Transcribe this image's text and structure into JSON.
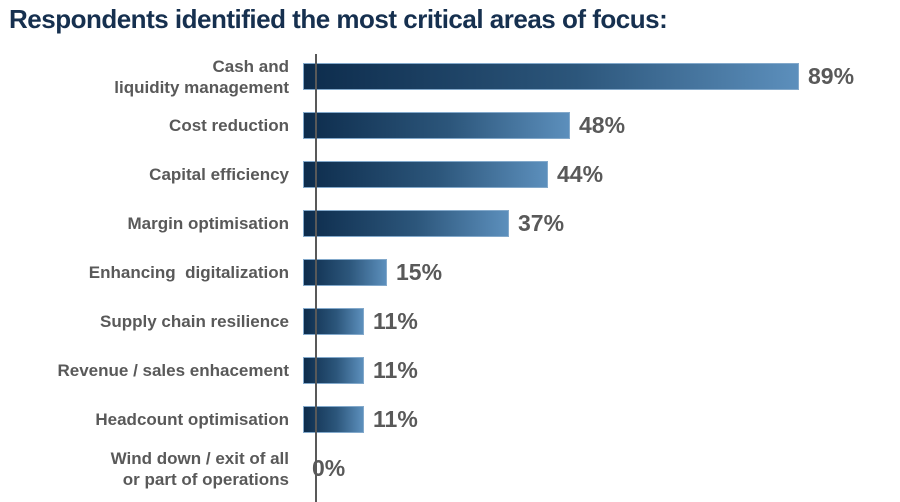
{
  "title": "Respondents identified the most critical areas of focus:",
  "colors": {
    "title": "#16304F",
    "label_gray": "#595959",
    "bar_gradient_start": "#0D2C4C",
    "bar_gradient_end": "#5C8FBC",
    "bar_border": "#83A9CB",
    "axis": "#595959"
  },
  "chart_data": {
    "type": "bar",
    "orientation": "horizontal",
    "title": "Respondents identified the most critical areas of focus:",
    "categories": [
      "Cash and liquidity management",
      "Cost reduction",
      "Capital efficiency",
      "Margin optimisation",
      "Enhancing  digitalization",
      "Supply chain resilience",
      "Revenue / sales enhacement",
      "Headcount optimisation",
      "Wind down / exit of all or part of operations"
    ],
    "values": [
      89,
      48,
      44,
      37,
      15,
      11,
      11,
      11,
      0
    ],
    "value_labels": [
      "89%",
      "48%",
      "44%",
      "37%",
      "15%",
      "11%",
      "11%",
      "11%",
      "0%"
    ],
    "xlim": [
      0,
      100
    ],
    "grid": false,
    "legend": "none",
    "xlabel": "",
    "ylabel": ""
  },
  "rows": [
    {
      "lines": [
        "Cash and",
        "liquidity management"
      ],
      "pct": "89%"
    },
    {
      "lines": [
        "Cost reduction"
      ],
      "pct": "48%"
    },
    {
      "lines": [
        "Capital efficiency"
      ],
      "pct": "44%"
    },
    {
      "lines": [
        "Margin optimisation"
      ],
      "pct": "37%"
    },
    {
      "lines": [
        "Enhancing  digitalization"
      ],
      "pct": "15%"
    },
    {
      "lines": [
        "Supply chain resilience"
      ],
      "pct": "11%"
    },
    {
      "lines": [
        "Revenue / sales enhacement"
      ],
      "pct": "11%"
    },
    {
      "lines": [
        "Headcount optimisation"
      ],
      "pct": "11%"
    },
    {
      "lines": [
        "Wind down / exit of all",
        "or part of operations"
      ],
      "pct": "0%"
    }
  ]
}
